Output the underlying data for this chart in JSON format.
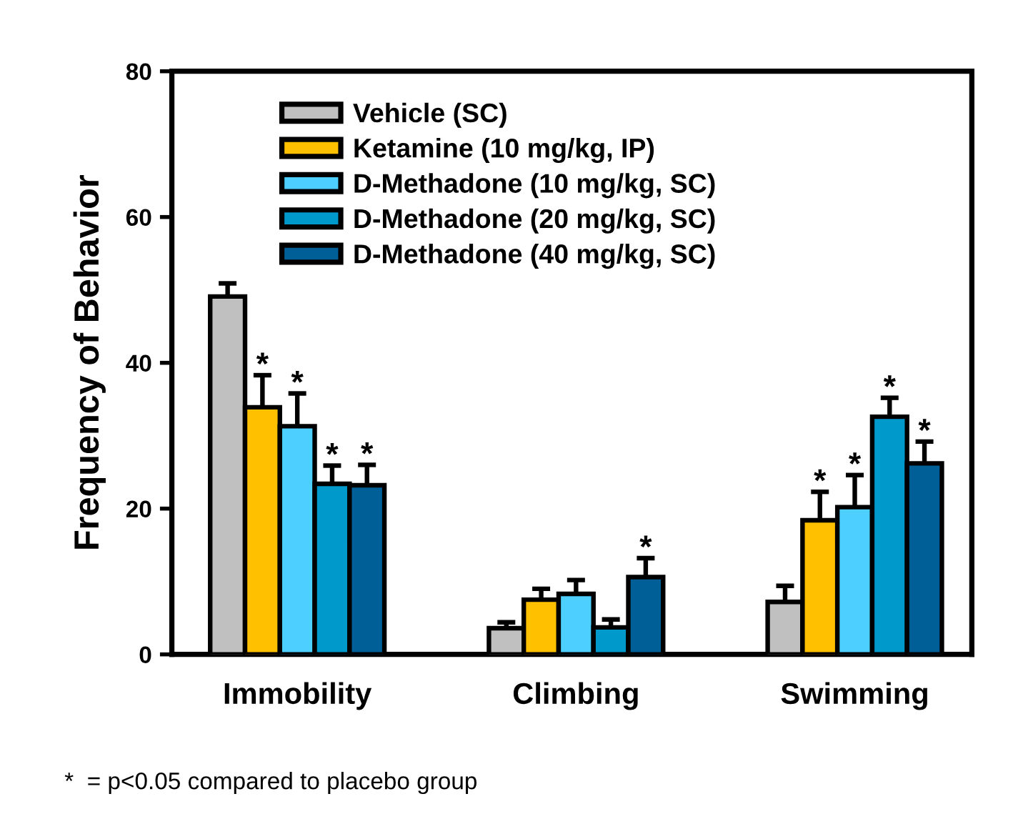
{
  "chart_data": {
    "type": "bar",
    "ylabel": "Frequency of Behavior",
    "categories": [
      "Immobility",
      "Climbing",
      "Swimming"
    ],
    "ylim": [
      0,
      80
    ],
    "yticks": [
      0,
      20,
      40,
      60,
      80
    ],
    "grid": false,
    "legend": "top left",
    "series": [
      {
        "name": "Vehicle (SC)",
        "color": "#c0c0c0",
        "values": [
          49.1,
          3.6,
          7.2
        ],
        "errors": [
          1.8,
          0.8,
          2.2
        ],
        "value_labels": [
          null,
          null,
          null
        ]
      },
      {
        "name": "Ketamine (10 mg/kg, IP)",
        "color": "#ffc000",
        "values": [
          33.9,
          7.5,
          18.4
        ],
        "errors": [
          4.4,
          1.5,
          3.9
        ],
        "value_labels": [
          "*",
          null,
          "*"
        ]
      },
      {
        "name": "D-Methadone (10 mg/kg, SC)",
        "color": "#4dcfff",
        "values": [
          31.3,
          8.3,
          20.2
        ],
        "errors": [
          4.5,
          1.9,
          4.4
        ],
        "value_labels": [
          "*",
          null,
          "*"
        ]
      },
      {
        "name": "D-Methadone (20 mg/kg, SC)",
        "color": "#0099cc",
        "values": [
          23.4,
          3.7,
          32.6
        ],
        "errors": [
          2.5,
          1.1,
          2.6
        ],
        "value_labels": [
          "*",
          null,
          "*"
        ]
      },
      {
        "name": "D-Methadone (40 mg/kg, SC)",
        "color": "#005f96",
        "values": [
          23.2,
          10.6,
          26.2
        ],
        "errors": [
          2.8,
          2.6,
          3.0
        ],
        "value_labels": [
          "*",
          "*",
          "*"
        ]
      }
    ],
    "annotations": [
      "*  = p<0.05 compared to placebo group"
    ]
  }
}
